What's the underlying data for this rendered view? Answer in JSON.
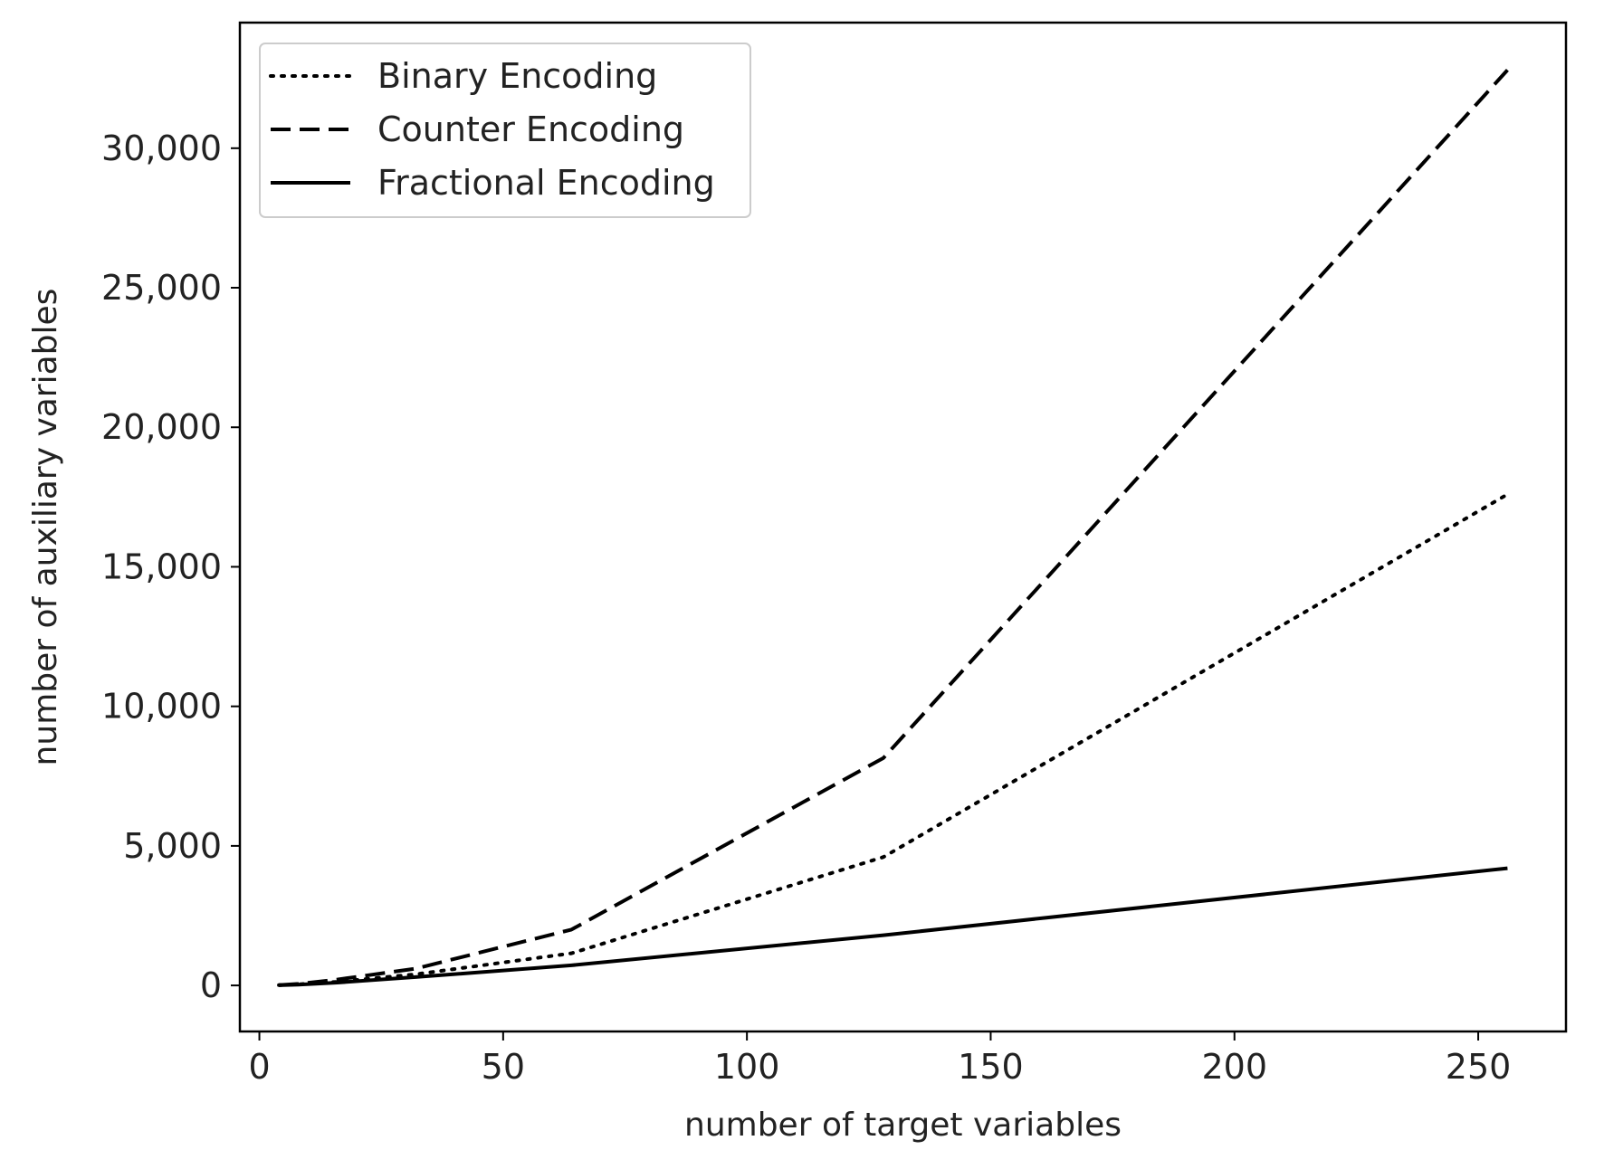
{
  "chart_data": {
    "type": "line",
    "title": "",
    "xlabel": "number of target variables",
    "ylabel": "number of auxiliary variables",
    "xlim": [
      -4,
      268
    ],
    "ylim": [
      -1650,
      34500
    ],
    "xticks": [
      0,
      50,
      100,
      150,
      200,
      250
    ],
    "yticks": [
      0,
      5000,
      10000,
      15000,
      20000,
      25000,
      30000
    ],
    "xtick_labels": [
      "0",
      "50",
      "100",
      "150",
      "200",
      "250"
    ],
    "ytick_labels": [
      "0",
      "5,000",
      "10,000",
      "15,000",
      "20,000",
      "25,000",
      "30,000"
    ],
    "grid": false,
    "legend_position": "top-left",
    "x": [
      4,
      8,
      16,
      32,
      64,
      128,
      256
    ],
    "series": [
      {
        "name": "Binary Encoding",
        "style": "dotted",
        "color": "#000000",
        "values": [
          10,
          40,
          130,
          400,
          1150,
          4600,
          17600
        ]
      },
      {
        "name": "Counter Encoding",
        "style": "dashed",
        "color": "#000000",
        "values": [
          12,
          55,
          210,
          600,
          2000,
          8150,
          32800
        ]
      },
      {
        "name": "Fractional Encoding",
        "style": "solid",
        "color": "#000000",
        "values": [
          8,
          30,
          100,
          300,
          720,
          1800,
          4200
        ]
      }
    ]
  }
}
